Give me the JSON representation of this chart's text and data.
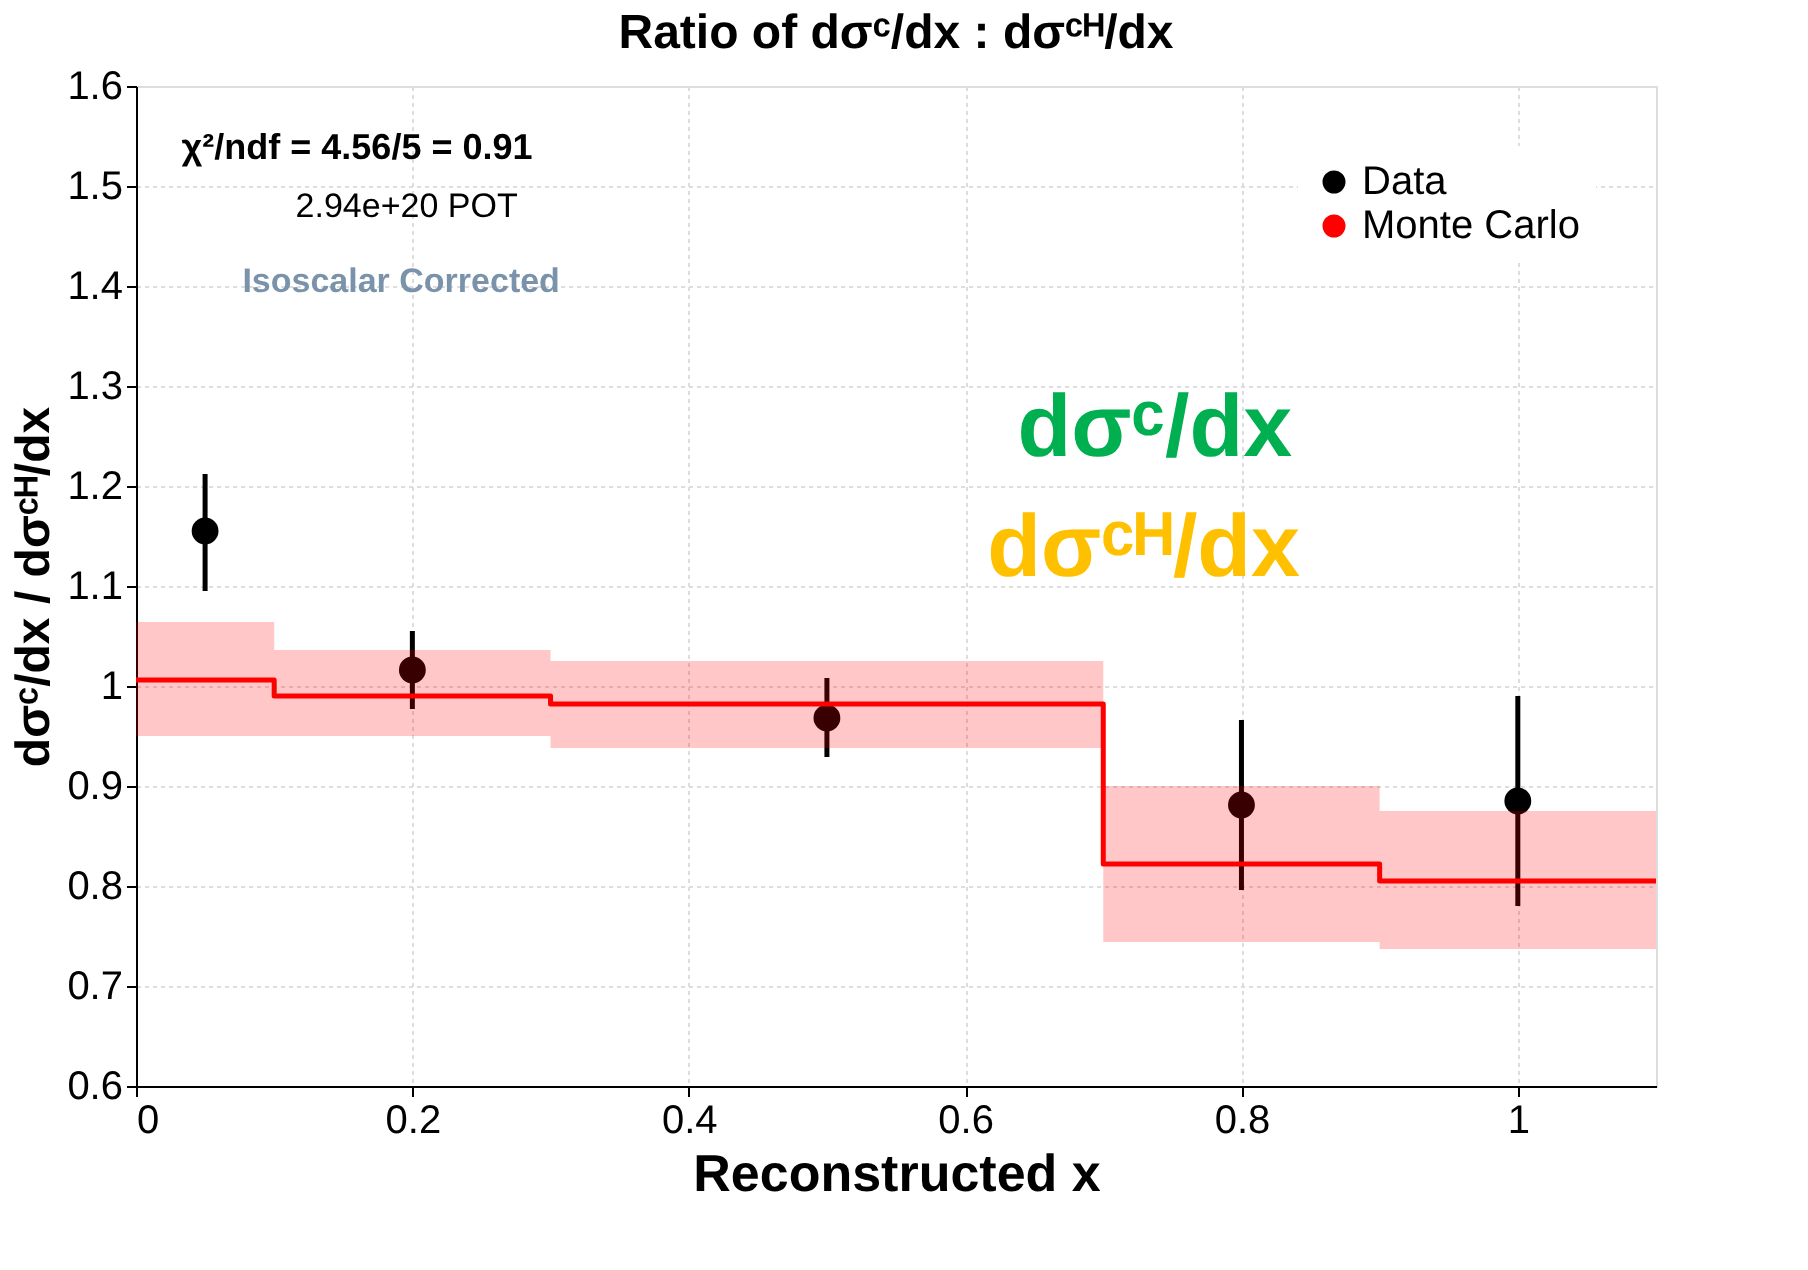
{
  "chart_data": {
    "type": "scatter",
    "title": "Ratio of dσᶜ/dx : dσᶜᴴ/dx",
    "xlabel": "Reconstructed x",
    "ylabel": "dσᶜ/dx / dσᶜᴴ/dx",
    "xlim": [
      0,
      1.1
    ],
    "xticks": [
      0,
      0.2,
      0.4,
      0.6,
      0.8,
      1
    ],
    "ylim": [
      0.6,
      1.6
    ],
    "yticks": [
      0.6,
      0.7,
      0.8,
      0.9,
      1,
      1.1,
      1.2,
      1.3,
      1.4,
      1.5,
      1.6
    ],
    "grid": true,
    "legend": "top right",
    "series": [
      {
        "name": "Data",
        "marker": "circle",
        "color": "#000000",
        "x": [
          0.05,
          0.2,
          0.5,
          0.8,
          1.0
        ],
        "values": [
          1.155,
          1.016,
          0.968,
          0.881,
          0.885
        ],
        "errors": [
          [
            1.095,
            1.212
          ],
          [
            0.977,
            1.055
          ],
          [
            0.929,
            1.008
          ],
          [
            0.796,
            0.966
          ],
          [
            0.78,
            0.99
          ]
        ]
      },
      {
        "name": "Monte Carlo",
        "type": "step",
        "marker": "none",
        "color": "#ff0000",
        "x": [
          0,
          0.1,
          0.3,
          0.7,
          0.9,
          1.1
        ],
        "values": [
          1.006,
          0.99,
          0.982,
          0.822,
          0.805,
          0.805
        ],
        "lower": [
          0.95,
          0.95,
          0.938,
          0.744,
          0.737,
          0.737
        ],
        "upper": [
          1.064,
          1.036,
          1.025,
          0.9,
          0.875,
          0.875
        ]
      }
    ],
    "annotations": [
      "χ²/ndf = 4.56/5 = 0.91",
      "2.94e+20 POT",
      "Isoscalar Corrected",
      "dσᶜ/dx",
      "dσᶜᴴ/dx"
    ]
  }
}
